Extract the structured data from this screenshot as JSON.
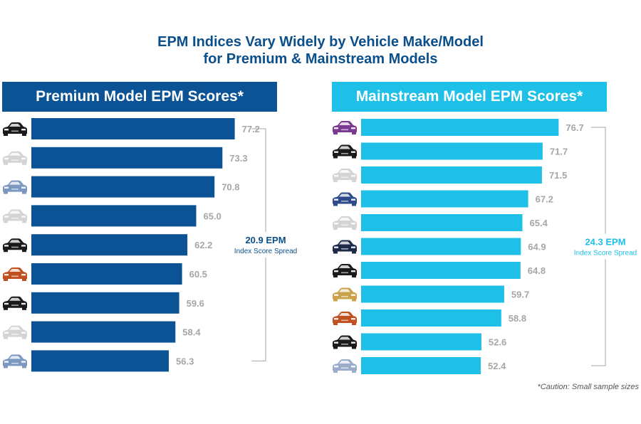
{
  "title_line1": "EPM Indices Vary Widely by Vehicle Make/Model",
  "title_line2": "for Premium & Mainstream Models",
  "footnote": "*Caution: Small sample sizes",
  "colors": {
    "title": "#0b4f8a",
    "premium": "#0b5394",
    "mainstream": "#1ec0e8",
    "value_label": "#a6a6a6",
    "bracket": "#a6a6a6"
  },
  "chart_data": [
    {
      "type": "bar",
      "orientation": "horizontal",
      "title": "Premium Model EPM Scores*",
      "values": [
        77.2,
        73.3,
        70.8,
        65.0,
        62.2,
        60.5,
        59.6,
        58.4,
        56.3
      ],
      "car_icon_colors": [
        "#1a1a1a",
        "#d4d4d4",
        "#7b98c0",
        "#d4d4d4",
        "#1a1a1a",
        "#c0501f",
        "#1a1a1a",
        "#d4d4d4",
        "#7b98c0"
      ],
      "bar_color": "#0b5394",
      "spread": {
        "value": "20.9 EPM",
        "label": "Index Score Spread"
      }
    },
    {
      "type": "bar",
      "orientation": "horizontal",
      "title": "Mainstream Model EPM Scores*",
      "values": [
        76.7,
        71.7,
        71.5,
        67.2,
        65.4,
        64.9,
        64.8,
        59.7,
        58.8,
        52.6,
        52.4
      ],
      "car_icon_colors": [
        "#7a3a92",
        "#1a1a1a",
        "#d4d4d4",
        "#2d4a8a",
        "#d4d4d4",
        "#1c2b4a",
        "#1a1a1a",
        "#c9a24a",
        "#c0501f",
        "#1a1a1a",
        "#9aaccc"
      ],
      "bar_color": "#1ec0e8",
      "spread": {
        "value": "24.3 EPM",
        "label": "Index Score Spread"
      }
    }
  ]
}
